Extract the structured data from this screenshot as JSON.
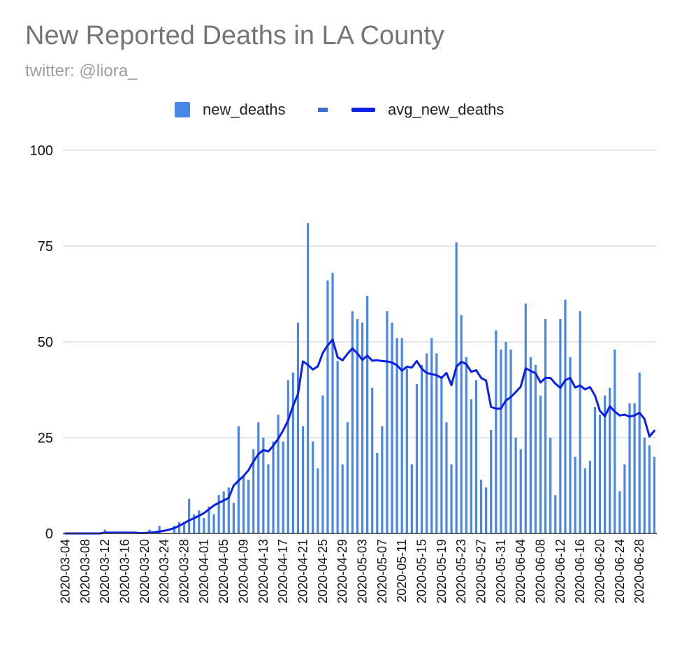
{
  "chart_data": {
    "type": "bar",
    "title": "New Reported Deaths in LA County",
    "subtitle": "twitter: @liora_",
    "legend": [
      {
        "name": "new_deaths",
        "color": "#4a86e8",
        "kind": "bar"
      },
      {
        "name": "avg_new_deaths",
        "color": "#0a1fe6",
        "kind": "line"
      }
    ],
    "xlabel": "",
    "ylabel": "",
    "ylim": [
      0,
      100
    ],
    "yticks": [
      0,
      25,
      50,
      75,
      100
    ],
    "start_date": "2020-03-04",
    "x_tick_labels": [
      "2020-03-04",
      "2020-03-08",
      "2020-03-12",
      "2020-03-16",
      "2020-03-20",
      "2020-03-24",
      "2020-03-28",
      "2020-04-01",
      "2020-04-05",
      "2020-04-09",
      "2020-04-13",
      "2020-04-17",
      "2020-04-21",
      "2020-04-25",
      "2020-04-29",
      "2020-05-03",
      "2020-05-07",
      "2020-05-11",
      "2020-05-15",
      "2020-05-19",
      "2020-05-23",
      "2020-05-27",
      "2020-05-31",
      "2020-06-04",
      "2020-06-08",
      "2020-06-12",
      "2020-06-16",
      "2020-06-20",
      "2020-06-24",
      "2020-06-28"
    ],
    "series": [
      {
        "name": "new_deaths",
        "values": [
          0,
          0,
          0,
          0,
          0,
          0,
          0,
          0,
          1,
          0,
          0,
          0,
          0,
          0,
          0,
          0,
          0,
          1,
          0,
          2,
          0,
          0,
          2,
          3,
          3,
          9,
          5,
          6,
          4,
          7,
          5,
          10,
          11,
          12,
          8,
          28,
          15,
          14,
          22,
          29,
          25,
          18,
          24,
          31,
          24,
          40,
          42,
          55,
          28,
          81,
          24,
          17,
          36,
          66,
          68,
          45,
          18,
          29,
          58,
          56,
          55,
          62,
          38,
          21,
          28,
          58,
          55,
          51,
          51,
          43,
          18,
          39,
          44,
          47,
          51,
          47,
          41,
          29,
          18,
          76,
          57,
          46,
          35,
          40,
          14,
          12,
          27,
          53,
          48,
          50,
          48,
          25,
          22,
          60,
          46,
          44,
          36,
          56,
          25,
          10,
          56,
          61,
          46,
          20,
          58,
          17,
          19,
          33,
          31,
          36,
          38,
          48,
          11,
          18,
          34,
          34,
          42,
          25,
          23,
          20
        ]
      },
      {
        "name": "avg_new_deaths",
        "values": [
          0,
          0,
          0,
          0,
          0,
          0,
          0,
          0,
          0.2,
          0.2,
          0.2,
          0.2,
          0.2,
          0.2,
          0.2,
          0.1,
          0.1,
          0.2,
          0.3,
          0.5,
          0.7,
          1.0,
          1.4,
          2.0,
          2.7,
          3.4,
          4.0,
          4.6,
          5.3,
          6.3,
          7.3,
          8.0,
          8.6,
          9.3,
          12.5,
          13.8,
          15.0,
          16.5,
          18.8,
          20.7,
          21.8,
          21.4,
          22.9,
          24.7,
          26.9,
          29.5,
          33.3,
          36.4,
          44.9,
          44.0,
          42.8,
          43.6,
          47.1,
          49.1,
          50.6,
          46.0,
          45.2,
          46.9,
          48.3,
          47.0,
          45.3,
          46.4,
          45.1,
          45.2,
          45.0,
          44.9,
          44.6,
          43.9,
          42.5,
          43.5,
          43.3,
          45.0,
          43.0,
          41.9,
          41.6,
          41.3,
          40.6,
          41.9,
          38.7,
          43.5,
          44.8,
          44.2,
          42.2,
          42.6,
          40.6,
          39.9,
          33.0,
          32.6,
          32.6,
          34.7,
          35.6,
          36.9,
          38.3,
          43.1,
          42.4,
          41.8,
          39.4,
          40.6,
          40.6,
          39.1,
          38.0,
          40.0,
          40.6,
          38.1,
          38.6,
          37.6,
          38.2,
          36.0,
          32.0,
          30.6,
          33.2,
          31.8,
          30.8,
          31.0,
          30.5,
          30.8,
          31.5,
          29.9,
          25.3,
          26.8
        ]
      }
    ]
  }
}
